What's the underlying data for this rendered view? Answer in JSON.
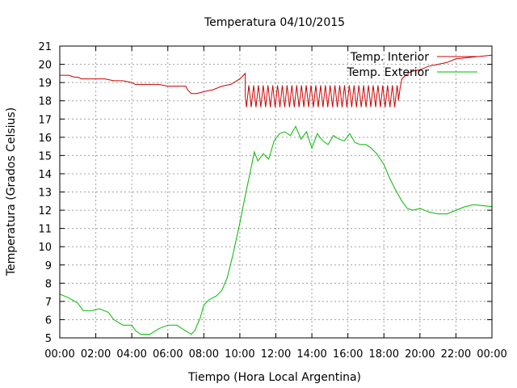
{
  "chart_data": {
    "type": "line",
    "title": "Temperatura 04/10/2015",
    "xlabel": "Tiempo (Hora Local Argentina)",
    "ylabel": "Temperatura (Grados Celsius)",
    "xlim": [
      0,
      24
    ],
    "ylim": [
      5,
      21
    ],
    "x_tick_labels": [
      "00:00",
      "02:00",
      "04:00",
      "06:00",
      "08:00",
      "10:00",
      "12:00",
      "14:00",
      "16:00",
      "18:00",
      "20:00",
      "22:00",
      "00:00"
    ],
    "y_tick_labels": [
      "5",
      "6",
      "7",
      "8",
      "9",
      "10",
      "11",
      "12",
      "13",
      "14",
      "15",
      "16",
      "17",
      "18",
      "19",
      "20",
      "21"
    ],
    "grid": true,
    "legend_position": "top-right",
    "series": [
      {
        "name": "Temp. Interior",
        "color": "#cc0000",
        "x": [
          0,
          0.5,
          0.8,
          1.0,
          1.2,
          2.0,
          2.5,
          3.0,
          3.5,
          4.0,
          4.2,
          5.0,
          5.5,
          6.0,
          6.5,
          7.0,
          7.1,
          7.3,
          7.6,
          8.0,
          8.5,
          9.0,
          9.5,
          10.0,
          10.2,
          10.3,
          10.3,
          18.8,
          18.9,
          19.0,
          19.2,
          19.5,
          20.0,
          20.5,
          21.0,
          21.5,
          22.0,
          23.0,
          24.0
        ],
        "y": [
          19.4,
          19.4,
          19.3,
          19.3,
          19.2,
          19.2,
          19.2,
          19.1,
          19.1,
          19.0,
          18.9,
          18.9,
          18.9,
          18.8,
          18.8,
          18.8,
          18.6,
          18.4,
          18.4,
          18.5,
          18.6,
          18.8,
          18.9,
          19.2,
          19.4,
          19.5,
          18.0,
          18.0,
          18.7,
          19.2,
          19.4,
          19.6,
          19.7,
          19.9,
          20.0,
          20.1,
          20.3,
          20.4,
          20.5
        ]
      },
      {
        "name": "Temp. Exterior",
        "color": "#00bb00",
        "x": [
          0,
          0.5,
          1.0,
          1.3,
          1.8,
          2.2,
          2.7,
          3.0,
          3.5,
          4.0,
          4.2,
          4.5,
          5.0,
          5.5,
          6.0,
          6.5,
          6.8,
          7.3,
          7.5,
          7.8,
          8.0,
          8.3,
          8.7,
          9.0,
          9.3,
          9.6,
          10.0,
          10.3,
          10.6,
          10.8,
          11.0,
          11.3,
          11.6,
          11.9,
          12.2,
          12.5,
          12.8,
          13.1,
          13.4,
          13.7,
          14.0,
          14.3,
          14.6,
          14.9,
          15.2,
          15.5,
          15.8,
          16.1,
          16.4,
          16.7,
          17.0,
          17.3,
          17.6,
          18.0,
          18.3,
          18.6,
          19.0,
          19.3,
          19.6,
          20.0,
          20.5,
          21.0,
          21.5,
          22.0,
          22.5,
          23.0,
          24.0
        ],
        "y": [
          7.4,
          7.2,
          6.9,
          6.5,
          6.5,
          6.6,
          6.4,
          6.0,
          5.7,
          5.7,
          5.4,
          5.2,
          5.2,
          5.5,
          5.7,
          5.7,
          5.5,
          5.2,
          5.4,
          6.1,
          6.8,
          7.1,
          7.3,
          7.6,
          8.3,
          9.5,
          11.3,
          12.8,
          14.2,
          15.2,
          14.7,
          15.1,
          14.8,
          15.8,
          16.2,
          16.3,
          16.1,
          16.6,
          15.9,
          16.3,
          15.4,
          16.2,
          15.8,
          15.6,
          16.1,
          15.9,
          15.8,
          16.2,
          15.7,
          15.6,
          15.6,
          15.4,
          15.1,
          14.5,
          13.8,
          13.2,
          12.5,
          12.1,
          12.0,
          12.1,
          11.9,
          11.8,
          11.8,
          12.0,
          12.2,
          12.3,
          12.2
        ]
      }
    ]
  }
}
